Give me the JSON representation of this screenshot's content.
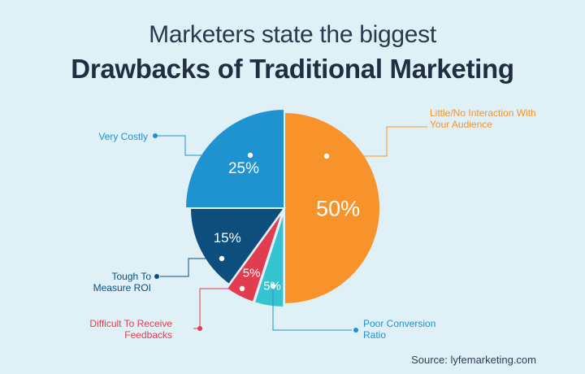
{
  "header": {
    "title_line1": "Marketers state the biggest",
    "title_line2": "Drawbacks of Traditional Marketing"
  },
  "source": "Source: lyfemarketing.com",
  "chart_data": {
    "type": "pie",
    "title": "Drawbacks of Traditional Marketing",
    "slices": [
      {
        "label": "Little/No Interaction With Your Audience",
        "label_lines": [
          "Little/No Interaction With",
          "Your Audience"
        ],
        "value": 50,
        "display": "50%",
        "color": "#f7932a"
      },
      {
        "label": "Poor Conversion Ratio",
        "label_lines": [
          "Poor Conversion",
          "Ratio"
        ],
        "value": 5,
        "display": "5%",
        "color": "#35c3cf"
      },
      {
        "label": "Difficult To Receive Feedbacks",
        "label_lines": [
          "Difficult To Receive",
          "Feedbacks"
        ],
        "value": 5,
        "display": "5%",
        "color": "#e23d4f"
      },
      {
        "label": "Tough To Measure ROI",
        "label_lines": [
          "Tough To",
          "Measure ROI"
        ],
        "value": 15,
        "display": "15%",
        "color": "#0d4e7c"
      },
      {
        "label": "Very Costly",
        "label_lines": [
          "Very Costly"
        ],
        "value": 25,
        "display": "25%",
        "color": "#1e93d0"
      }
    ]
  }
}
